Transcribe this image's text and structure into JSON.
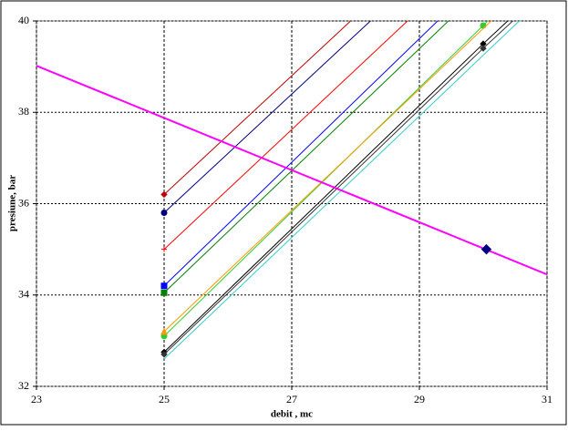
{
  "chart_data": {
    "type": "line",
    "x_label": "debit , mc",
    "y_label": "presiune, bar",
    "xlim": [
      23,
      31
    ],
    "xticks": [
      23,
      25,
      27,
      29,
      31
    ],
    "ylim": [
      32,
      40
    ],
    "yticks": [
      32,
      34,
      36,
      38,
      40
    ],
    "grid": true,
    "series": [
      {
        "color": "#c00000",
        "marker": "diamond",
        "x": [
          25,
          28.0
        ],
        "values": [
          36.2,
          40.1
        ]
      },
      {
        "color": "#000080",
        "marker": "circle",
        "x": [
          25,
          28.31
        ],
        "values": [
          35.8,
          40.1
        ]
      },
      {
        "color": "#ff0000",
        "marker": "plus",
        "x": [
          25,
          28.89
        ],
        "values": [
          35.0,
          40.1
        ]
      },
      {
        "color": "#0000ff",
        "marker": "square",
        "x": [
          25,
          29.36
        ],
        "values": [
          34.2,
          40.1
        ]
      },
      {
        "color": "#008000",
        "marker": "square",
        "x": [
          25,
          29.53
        ],
        "values": [
          34.05,
          40.1
        ]
      },
      {
        "color": "#33cc33",
        "marker": "circle",
        "x": [
          25,
          30,
          30.14
        ],
        "values": [
          33.1,
          39.9,
          40.1
        ]
      },
      {
        "color": "#ff9900",
        "marker": "triangle",
        "x": [
          25,
          30.2
        ],
        "values": [
          33.2,
          40.1
        ]
      },
      {
        "color": "#000000",
        "marker": "diamond",
        "x": [
          25,
          30,
          30.46
        ],
        "values": [
          32.75,
          39.5,
          40.1
        ]
      },
      {
        "color": "#333333",
        "marker": "diamond",
        "x": [
          25,
          30,
          30.54
        ],
        "values": [
          32.7,
          39.4,
          40.1
        ]
      },
      {
        "color": "#33cccc",
        "marker": "none",
        "x": [
          25,
          30.64
        ],
        "values": [
          32.6,
          40.1
        ]
      },
      {
        "color": "#ff00ff",
        "marker": "none",
        "width": 2,
        "x": [
          23,
          31
        ],
        "values": [
          39.02,
          34.45
        ]
      },
      {
        "color": "#000080",
        "marker": "big-diamond",
        "line": false,
        "x": [
          30.05
        ],
        "values": [
          35.0
        ]
      }
    ]
  }
}
